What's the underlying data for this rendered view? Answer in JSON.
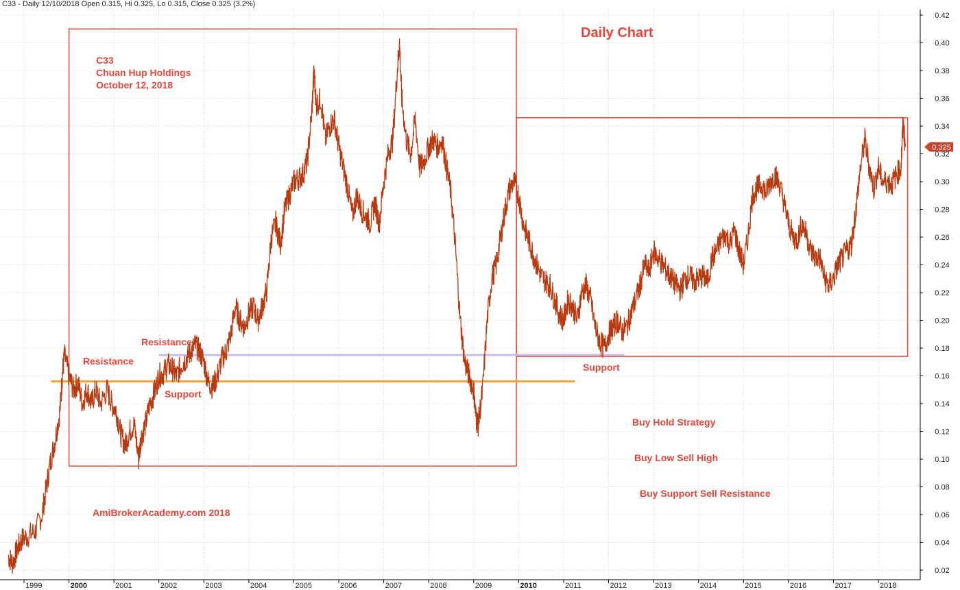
{
  "header": {
    "text": "C33 - Daily 12/10/2018 Open 0.315, Hi 0.325, Lo 0.315, Close 0.325 (3.2%)"
  },
  "annotations": {
    "title": "Daily Chart",
    "ticker": "C33",
    "company": "Chuan Hup Holdings",
    "date": "October 12, 2018",
    "resistance_1": "Resistance",
    "resistance_2": "Resistance",
    "support_1": "Support",
    "support_2": "Support",
    "strategy_1": "Buy Hold Strategy",
    "strategy_2": "Buy Low Sell High",
    "strategy_3": "Buy Support Sell Resistance",
    "watermark": "AmiBrokerAcademy.com  2018"
  },
  "colors": {
    "price": "#b83a10",
    "annotation": "#e8463a",
    "box": "#ee4a3c",
    "orange_line": "#f5a23a",
    "lavender_line": "#c9bde6",
    "price_tag_bg": "#c8462e",
    "grid": "#d4d4d4"
  },
  "chart_data": {
    "type": "line",
    "title": "",
    "xlabel": "",
    "ylabel": "",
    "ylim": [
      0.015,
      0.425
    ],
    "xlim": [
      1998.6,
      2018.9
    ],
    "y_ticks": [
      "0.02",
      "0.04",
      "0.06",
      "0.08",
      "0.10",
      "0.12",
      "0.14",
      "0.16",
      "0.18",
      "0.20",
      "0.22",
      "0.24",
      "0.26",
      "0.28",
      "0.30",
      "0.32",
      "0.34",
      "0.36",
      "0.38",
      "0.40",
      "0.42"
    ],
    "x_ticks": [
      {
        "x": 1999.0,
        "label": "1999",
        "bold": false
      },
      {
        "x": 2000.0,
        "label": "2000",
        "bold": true
      },
      {
        "x": 2001.0,
        "label": "2001",
        "bold": false
      },
      {
        "x": 2002.0,
        "label": "2002",
        "bold": false
      },
      {
        "x": 2003.0,
        "label": "2003",
        "bold": false
      },
      {
        "x": 2004.0,
        "label": "2004",
        "bold": false
      },
      {
        "x": 2005.0,
        "label": "2005",
        "bold": false
      },
      {
        "x": 2006.0,
        "label": "2006",
        "bold": false
      },
      {
        "x": 2007.0,
        "label": "2007",
        "bold": false
      },
      {
        "x": 2008.0,
        "label": "2008",
        "bold": false
      },
      {
        "x": 2009.0,
        "label": "2009",
        "bold": false
      },
      {
        "x": 2010.0,
        "label": "2010",
        "bold": true
      },
      {
        "x": 2011.0,
        "label": "2011",
        "bold": false
      },
      {
        "x": 2012.0,
        "label": "2012",
        "bold": false
      },
      {
        "x": 2013.0,
        "label": "2013",
        "bold": false
      },
      {
        "x": 2014.0,
        "label": "2014",
        "bold": false
      },
      {
        "x": 2015.0,
        "label": "2015",
        "bold": false
      },
      {
        "x": 2016.0,
        "label": "2016",
        "bold": false
      },
      {
        "x": 2017.0,
        "label": "2017",
        "bold": false
      },
      {
        "x": 2018.0,
        "label": "2018",
        "bold": false
      }
    ],
    "series": [
      {
        "points": [
          [
            1998.65,
            0.03
          ],
          [
            1998.75,
            0.025
          ],
          [
            1998.85,
            0.035
          ],
          [
            1998.95,
            0.042
          ],
          [
            1999.1,
            0.045
          ],
          [
            1999.25,
            0.048
          ],
          [
            1999.4,
            0.06
          ],
          [
            1999.5,
            0.08
          ],
          [
            1999.6,
            0.1
          ],
          [
            1999.7,
            0.115
          ],
          [
            1999.8,
            0.135
          ],
          [
            1999.85,
            0.16
          ],
          [
            1999.9,
            0.175
          ],
          [
            2000.0,
            0.16
          ],
          [
            2000.1,
            0.15
          ],
          [
            2000.2,
            0.155
          ],
          [
            2000.3,
            0.14
          ],
          [
            2000.4,
            0.15
          ],
          [
            2000.5,
            0.14
          ],
          [
            2000.6,
            0.15
          ],
          [
            2000.7,
            0.14
          ],
          [
            2000.85,
            0.15
          ],
          [
            2000.95,
            0.14
          ],
          [
            2001.05,
            0.135
          ],
          [
            2001.15,
            0.118
          ],
          [
            2001.25,
            0.11
          ],
          [
            2001.35,
            0.12
          ],
          [
            2001.45,
            0.125
          ],
          [
            2001.55,
            0.1
          ],
          [
            2001.6,
            0.115
          ],
          [
            2001.7,
            0.125
          ],
          [
            2001.8,
            0.14
          ],
          [
            2001.9,
            0.148
          ],
          [
            2002.0,
            0.16
          ],
          [
            2002.1,
            0.162
          ],
          [
            2002.2,
            0.168
          ],
          [
            2002.3,
            0.165
          ],
          [
            2002.4,
            0.16
          ],
          [
            2002.5,
            0.168
          ],
          [
            2002.6,
            0.172
          ],
          [
            2002.7,
            0.177
          ],
          [
            2002.8,
            0.182
          ],
          [
            2002.9,
            0.178
          ],
          [
            2003.0,
            0.17
          ],
          [
            2003.1,
            0.155
          ],
          [
            2003.2,
            0.152
          ],
          [
            2003.3,
            0.16
          ],
          [
            2003.4,
            0.172
          ],
          [
            2003.5,
            0.178
          ],
          [
            2003.6,
            0.19
          ],
          [
            2003.7,
            0.21
          ],
          [
            2003.8,
            0.2
          ],
          [
            2003.9,
            0.195
          ],
          [
            2004.0,
            0.205
          ],
          [
            2004.1,
            0.21
          ],
          [
            2004.2,
            0.2
          ],
          [
            2004.3,
            0.21
          ],
          [
            2004.4,
            0.222
          ],
          [
            2004.5,
            0.26
          ],
          [
            2004.6,
            0.27
          ],
          [
            2004.7,
            0.255
          ],
          [
            2004.8,
            0.28
          ],
          [
            2004.9,
            0.29
          ],
          [
            2005.0,
            0.3
          ],
          [
            2005.1,
            0.302
          ],
          [
            2005.2,
            0.305
          ],
          [
            2005.3,
            0.315
          ],
          [
            2005.4,
            0.35
          ],
          [
            2005.45,
            0.38
          ],
          [
            2005.5,
            0.355
          ],
          [
            2005.6,
            0.36
          ],
          [
            2005.7,
            0.33
          ],
          [
            2005.8,
            0.34
          ],
          [
            2005.9,
            0.345
          ],
          [
            2006.0,
            0.325
          ],
          [
            2006.1,
            0.31
          ],
          [
            2006.2,
            0.295
          ],
          [
            2006.3,
            0.275
          ],
          [
            2006.4,
            0.29
          ],
          [
            2006.5,
            0.28
          ],
          [
            2006.6,
            0.275
          ],
          [
            2006.7,
            0.27
          ],
          [
            2006.8,
            0.285
          ],
          [
            2006.9,
            0.27
          ],
          [
            2007.0,
            0.3
          ],
          [
            2007.1,
            0.32
          ],
          [
            2007.2,
            0.33
          ],
          [
            2007.3,
            0.38
          ],
          [
            2007.35,
            0.4
          ],
          [
            2007.4,
            0.36
          ],
          [
            2007.5,
            0.33
          ],
          [
            2007.6,
            0.32
          ],
          [
            2007.7,
            0.345
          ],
          [
            2007.8,
            0.31
          ],
          [
            2007.9,
            0.315
          ],
          [
            2008.0,
            0.325
          ],
          [
            2008.1,
            0.33
          ],
          [
            2008.2,
            0.325
          ],
          [
            2008.3,
            0.33
          ],
          [
            2008.4,
            0.31
          ],
          [
            2008.5,
            0.29
          ],
          [
            2008.6,
            0.25
          ],
          [
            2008.7,
            0.2
          ],
          [
            2008.8,
            0.17
          ],
          [
            2008.9,
            0.16
          ],
          [
            2009.0,
            0.15
          ],
          [
            2009.05,
            0.13
          ],
          [
            2009.1,
            0.125
          ],
          [
            2009.2,
            0.15
          ],
          [
            2009.3,
            0.2
          ],
          [
            2009.4,
            0.23
          ],
          [
            2009.5,
            0.24
          ],
          [
            2009.6,
            0.26
          ],
          [
            2009.7,
            0.28
          ],
          [
            2009.8,
            0.295
          ],
          [
            2009.9,
            0.3
          ],
          [
            2010.0,
            0.29
          ],
          [
            2010.1,
            0.27
          ],
          [
            2010.2,
            0.26
          ],
          [
            2010.3,
            0.25
          ],
          [
            2010.4,
            0.24
          ],
          [
            2010.5,
            0.232
          ],
          [
            2010.6,
            0.228
          ],
          [
            2010.7,
            0.225
          ],
          [
            2010.8,
            0.215
          ],
          [
            2010.9,
            0.205
          ],
          [
            2011.0,
            0.2
          ],
          [
            2011.1,
            0.215
          ],
          [
            2011.2,
            0.21
          ],
          [
            2011.3,
            0.2
          ],
          [
            2011.4,
            0.22
          ],
          [
            2011.5,
            0.225
          ],
          [
            2011.6,
            0.215
          ],
          [
            2011.7,
            0.195
          ],
          [
            2011.8,
            0.185
          ],
          [
            2011.9,
            0.18
          ],
          [
            2012.0,
            0.19
          ],
          [
            2012.1,
            0.195
          ],
          [
            2012.2,
            0.2
          ],
          [
            2012.3,
            0.192
          ],
          [
            2012.4,
            0.195
          ],
          [
            2012.5,
            0.205
          ],
          [
            2012.6,
            0.215
          ],
          [
            2012.7,
            0.225
          ],
          [
            2012.8,
            0.24
          ],
          [
            2012.9,
            0.235
          ],
          [
            2013.0,
            0.25
          ],
          [
            2013.1,
            0.245
          ],
          [
            2013.2,
            0.24
          ],
          [
            2013.3,
            0.235
          ],
          [
            2013.4,
            0.23
          ],
          [
            2013.5,
            0.225
          ],
          [
            2013.6,
            0.222
          ],
          [
            2013.7,
            0.23
          ],
          [
            2013.8,
            0.232
          ],
          [
            2013.9,
            0.228
          ],
          [
            2014.0,
            0.23
          ],
          [
            2014.1,
            0.232
          ],
          [
            2014.2,
            0.228
          ],
          [
            2014.3,
            0.245
          ],
          [
            2014.4,
            0.25
          ],
          [
            2014.5,
            0.258
          ],
          [
            2014.6,
            0.262
          ],
          [
            2014.7,
            0.255
          ],
          [
            2014.8,
            0.265
          ],
          [
            2014.9,
            0.25
          ],
          [
            2015.0,
            0.24
          ],
          [
            2015.1,
            0.26
          ],
          [
            2015.2,
            0.29
          ],
          [
            2015.3,
            0.295
          ],
          [
            2015.4,
            0.298
          ],
          [
            2015.5,
            0.292
          ],
          [
            2015.6,
            0.3
          ],
          [
            2015.7,
            0.305
          ],
          [
            2015.8,
            0.298
          ],
          [
            2015.9,
            0.285
          ],
          [
            2016.0,
            0.27
          ],
          [
            2016.1,
            0.26
          ],
          [
            2016.2,
            0.258
          ],
          [
            2016.3,
            0.27
          ],
          [
            2016.4,
            0.262
          ],
          [
            2016.5,
            0.25
          ],
          [
            2016.6,
            0.245
          ],
          [
            2016.7,
            0.245
          ],
          [
            2016.8,
            0.23
          ],
          [
            2016.9,
            0.225
          ],
          [
            2017.0,
            0.23
          ],
          [
            2017.1,
            0.24
          ],
          [
            2017.2,
            0.245
          ],
          [
            2017.3,
            0.25
          ],
          [
            2017.4,
            0.255
          ],
          [
            2017.5,
            0.28
          ],
          [
            2017.6,
            0.31
          ],
          [
            2017.7,
            0.33
          ],
          [
            2017.8,
            0.31
          ],
          [
            2017.9,
            0.295
          ],
          [
            2018.0,
            0.31
          ],
          [
            2018.1,
            0.3
          ],
          [
            2018.2,
            0.3
          ],
          [
            2018.3,
            0.298
          ],
          [
            2018.4,
            0.305
          ],
          [
            2018.5,
            0.31
          ],
          [
            2018.55,
            0.342
          ],
          [
            2018.6,
            0.325
          ]
        ]
      }
    ],
    "last_price_label": "0.325",
    "last_price": 0.325,
    "boxes": [
      {
        "x0": 2000.0,
        "x1": 2009.95,
        "y0": 0.095,
        "y1": 0.41
      },
      {
        "x0": 2009.95,
        "x1": 2018.65,
        "y0": 0.174,
        "y1": 0.346
      }
    ],
    "lines": [
      {
        "x0": 1999.6,
        "x1": 2011.25,
        "y": 0.156,
        "color": "orange"
      },
      {
        "x0": 2002.0,
        "x1": 2012.35,
        "y": 0.175,
        "color": "lavender"
      }
    ]
  }
}
